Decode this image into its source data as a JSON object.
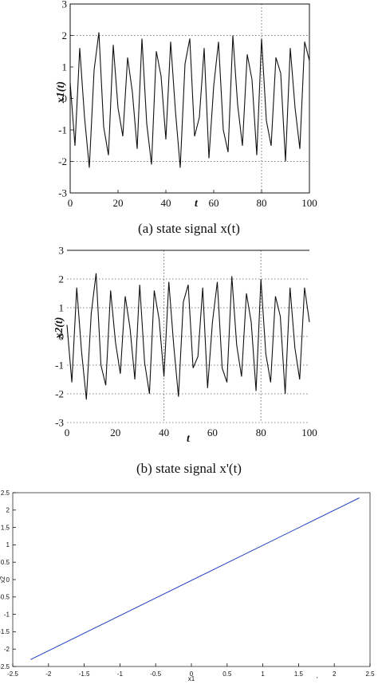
{
  "chart_data": [
    {
      "type": "line",
      "xlim": [
        0,
        100
      ],
      "ylim": [
        -3,
        3
      ],
      "x_ticks": [
        "0",
        "20",
        "40",
        "60",
        "80",
        "100"
      ],
      "x_tick_values": [
        0,
        20,
        40,
        60,
        80,
        100
      ],
      "y_ticks": [
        "-3",
        "-2",
        "-1",
        "0",
        "1",
        "2",
        "3"
      ],
      "y_tick_values": [
        -3,
        -2,
        -1,
        0,
        1,
        2,
        3
      ],
      "xlabel": "t",
      "ylabel": "x1(t)",
      "grid": "dotted lines at y = -2, 2 and x = 80",
      "series": [
        {
          "x": [
            0,
            2,
            4,
            6,
            8,
            10,
            12,
            14,
            16,
            18,
            20,
            22,
            24,
            26,
            28,
            30,
            32,
            34,
            36,
            38,
            40,
            42,
            44,
            46,
            48,
            50,
            52,
            54,
            56,
            58,
            60,
            62,
            64,
            66,
            68,
            70,
            72,
            74,
            76,
            78,
            80,
            82,
            84,
            86,
            88,
            90,
            92,
            94,
            96,
            98,
            100
          ],
          "values": [
            0.5,
            -1.5,
            1.6,
            -0.6,
            -2.2,
            0.9,
            2.1,
            -0.9,
            -1.8,
            1.7,
            -0.3,
            -1.2,
            1.3,
            0.2,
            -1.6,
            1.9,
            -0.8,
            -2.1,
            1.5,
            0.7,
            -1.3,
            1.8,
            -0.4,
            -2.2,
            1.1,
            1.9,
            -1.2,
            -0.6,
            1.6,
            -1.9,
            0.4,
            1.8,
            -1.0,
            -1.7,
            2.0,
            -0.2,
            -1.5,
            1.4,
            0.6,
            -1.8,
            1.9,
            -0.7,
            -1.5,
            1.3,
            0.8,
            -2.0,
            1.6,
            -0.3,
            -1.6,
            1.8,
            1.2
          ]
        }
      ]
    },
    {
      "type": "line",
      "xlim": [
        0,
        100
      ],
      "ylim": [
        -3,
        3
      ],
      "x_ticks": [
        "0",
        "20",
        "40",
        "60",
        "80",
        "100"
      ],
      "x_tick_values": [
        0,
        20,
        40,
        60,
        80,
        100
      ],
      "y_ticks": [
        "-3",
        "-2",
        "-1",
        "0",
        "1",
        "2",
        "3"
      ],
      "y_tick_values": [
        -3,
        -2,
        -1,
        0,
        1,
        2,
        3
      ],
      "xlabel": "t",
      "ylabel": "x2(t)",
      "grid": "dotted lines at y = -2, -1, 0, 1, 2 and x = 40, 80",
      "series": [
        {
          "x": [
            0,
            2,
            4,
            6,
            8,
            10,
            12,
            14,
            16,
            18,
            20,
            22,
            24,
            26,
            28,
            30,
            32,
            34,
            36,
            38,
            40,
            42,
            44,
            46,
            48,
            50,
            52,
            54,
            56,
            58,
            60,
            62,
            64,
            66,
            68,
            70,
            72,
            74,
            76,
            78,
            80,
            82,
            84,
            86,
            88,
            90,
            92,
            94,
            96,
            98,
            100
          ],
          "values": [
            0.4,
            -1.6,
            1.7,
            -0.5,
            -2.2,
            0.8,
            2.2,
            -1.0,
            -1.7,
            1.6,
            -0.2,
            -1.3,
            1.4,
            0.3,
            -1.5,
            1.8,
            -0.9,
            -2.0,
            1.6,
            0.6,
            -1.4,
            1.9,
            -0.3,
            -2.1,
            1.2,
            1.8,
            -1.1,
            -0.7,
            1.7,
            -1.8,
            0.5,
            1.9,
            -1.1,
            -1.6,
            2.1,
            -0.3,
            -1.4,
            1.5,
            0.5,
            -1.9,
            2.0,
            -0.6,
            -1.6,
            1.4,
            0.7,
            -2.0,
            1.7,
            -0.4,
            -1.5,
            1.7,
            0.5
          ]
        }
      ]
    },
    {
      "type": "line",
      "xlim": [
        -2.5,
        2.5
      ],
      "ylim": [
        -2.5,
        2.5
      ],
      "x_ticks": [
        "-2.5",
        "-2",
        "-1.5",
        "-1",
        "-0.5",
        "0",
        "0.5",
        "1",
        "1.5",
        "2",
        "2.5"
      ],
      "x_tick_values": [
        -2.5,
        -2,
        -1.5,
        -1,
        -0.5,
        0,
        0.5,
        1,
        1.5,
        2,
        2.5
      ],
      "y_ticks": [
        "-2.5",
        "-2",
        "-1.5",
        "-1",
        "-0.5",
        "0",
        "0.5",
        "1",
        "1.5",
        "2",
        "2.5"
      ],
      "y_tick_values": [
        -2.5,
        -2,
        -1.5,
        -1,
        -0.5,
        0,
        0.5,
        1,
        1.5,
        2,
        2.5
      ],
      "xlabel": "x1",
      "ylabel": "x2",
      "line_color": "#1f3fbf",
      "series": [
        {
          "x": [
            -2.25,
            2.35
          ],
          "values": [
            -2.3,
            2.35
          ]
        }
      ]
    }
  ],
  "captions": {
    "a": "(a) state signal x(t)",
    "b": "(b) state signal x'(t)"
  },
  "annotations": {
    "corner_mark": "'"
  },
  "colors": {
    "line": "#111111",
    "blue_line": "#1f3fbf",
    "grid": "#555555"
  }
}
